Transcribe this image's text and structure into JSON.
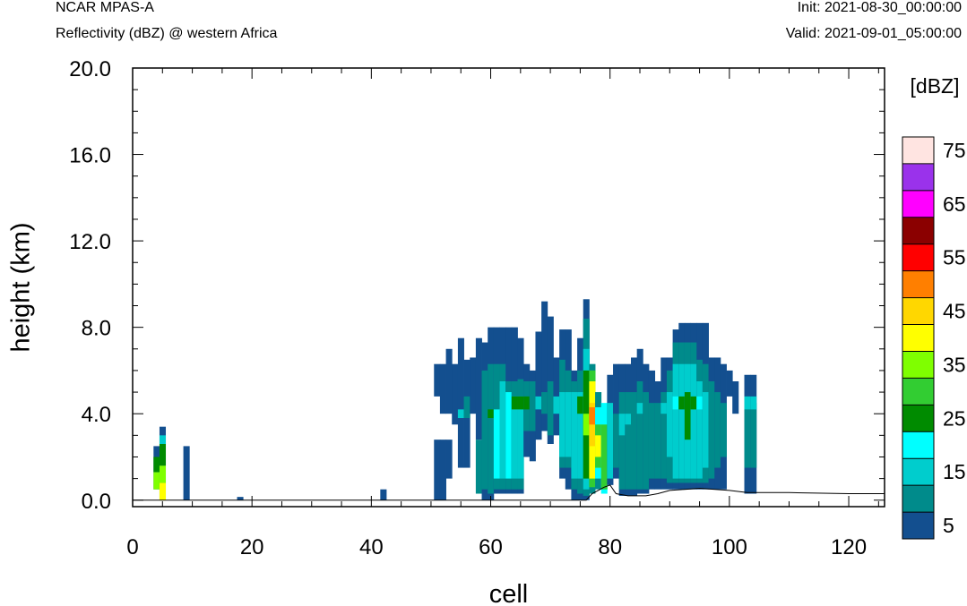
{
  "header": {
    "left_title": "NCAR MPAS-A",
    "left_subtitle": "Reflectivity (dBZ) @ western Africa",
    "init": "Init: 2021-08-30_00:00:00",
    "valid": "Valid: 2021-09-01_05:00:00"
  },
  "chart_data": {
    "type": "heatmap",
    "xlabel": "cell",
    "ylabel": "height (km)",
    "xlim": [
      0,
      126
    ],
    "ylim": [
      -0.3,
      20
    ],
    "x_ticks": [
      0,
      20,
      40,
      60,
      80,
      100,
      120
    ],
    "x_tick_labels": [
      "0",
      "20",
      "40",
      "60",
      "80",
      "100",
      "120"
    ],
    "y_ticks": [
      0,
      4,
      8,
      12,
      16,
      20
    ],
    "y_tick_labels": [
      "0.0",
      "4.0",
      "8.0",
      "12.0",
      "16.0",
      "20.0"
    ],
    "colorbar": {
      "unit": "[dBZ]",
      "levels": [
        5,
        10,
        15,
        20,
        25,
        30,
        35,
        40,
        45,
        50,
        55,
        60,
        65,
        70,
        75
      ],
      "colors": [
        "#134f8f",
        "#008b8b",
        "#00cdcd",
        "#00ffff",
        "#008b00",
        "#32cd32",
        "#7fff00",
        "#ffff00",
        "#ffd700",
        "#ff7f00",
        "#ff0000",
        "#8b0000",
        "#ff00ff",
        "#9a32eb",
        "#ffe4e1"
      ],
      "tick_labels": [
        "5",
        "15",
        "25",
        "35",
        "45",
        "55",
        "65",
        "75"
      ]
    },
    "columns": [
      {
        "x": 4,
        "cells": [
          [
            0.5,
            2.5,
            5
          ]
        ],
        "level_bands": [
          [
            0.5,
            1.3,
            35
          ],
          [
            1.3,
            2.0,
            25
          ]
        ]
      },
      {
        "x": 5,
        "cells": [
          [
            0.0,
            3.4,
            5
          ]
        ],
        "level_bands": [
          [
            0.0,
            0.8,
            40
          ],
          [
            0.8,
            1.6,
            35
          ],
          [
            1.6,
            2.6,
            25
          ],
          [
            2.6,
            3.0,
            15
          ]
        ]
      },
      {
        "x": 9,
        "cells": [
          [
            0.0,
            2.5,
            5
          ]
        ]
      },
      {
        "x": 18,
        "cells": [
          [
            0.0,
            0.15,
            5
          ]
        ]
      },
      {
        "x": 42,
        "cells": [
          [
            0.0,
            0.5,
            5
          ]
        ]
      },
      {
        "x": 51,
        "cells": [
          [
            0.0,
            2.8,
            5
          ],
          [
            4.8,
            6.3,
            5
          ]
        ]
      },
      {
        "x": 52,
        "cells": [
          [
            0.0,
            2.8,
            5
          ],
          [
            4.0,
            6.3,
            5
          ]
        ]
      },
      {
        "x": 53,
        "cells": [
          [
            1.0,
            2.8,
            5
          ],
          [
            4.0,
            7.0,
            5
          ]
        ]
      },
      {
        "x": 54,
        "cells": [
          [
            3.5,
            6.3,
            5
          ]
        ]
      },
      {
        "x": 55,
        "cells": [
          [
            1.5,
            7.5,
            5
          ],
          [
            3.8,
            4.2,
            15
          ]
        ]
      },
      {
        "x": 56,
        "cells": [
          [
            1.5,
            6.5,
            5
          ],
          [
            3.8,
            4.8,
            10
          ]
        ]
      },
      {
        "x": 57,
        "cells": [
          [
            4.0,
            6.6,
            5
          ]
        ]
      },
      {
        "x": 58,
        "cells": [
          [
            0.3,
            2.8,
            10
          ],
          [
            2.8,
            7.5,
            5
          ]
        ]
      },
      {
        "x": 59,
        "cells": [
          [
            0.0,
            7.3,
            5
          ],
          [
            0.5,
            6.0,
            10
          ]
        ]
      },
      {
        "x": 60,
        "cells": [
          [
            0.0,
            8.0,
            5
          ],
          [
            0.3,
            6.3,
            10
          ],
          [
            3.8,
            4.2,
            25
          ]
        ]
      },
      {
        "x": 61,
        "cells": [
          [
            0.3,
            8.0,
            5
          ],
          [
            0.5,
            6.3,
            10
          ],
          [
            1.0,
            4.2,
            20
          ]
        ]
      },
      {
        "x": 62,
        "cells": [
          [
            0.3,
            8.0,
            5
          ],
          [
            0.5,
            6.3,
            10
          ],
          [
            1.0,
            5.5,
            15
          ]
        ]
      },
      {
        "x": 63,
        "cells": [
          [
            0.3,
            8.0,
            5
          ],
          [
            0.5,
            5.5,
            10
          ],
          [
            1.0,
            5.0,
            20
          ]
        ]
      },
      {
        "x": 64,
        "cells": [
          [
            0.3,
            8.0,
            5
          ],
          [
            0.5,
            5.5,
            10
          ],
          [
            1.0,
            4.8,
            15
          ],
          [
            4.2,
            4.8,
            25
          ]
        ]
      },
      {
        "x": 65,
        "cells": [
          [
            0.3,
            7.5,
            5
          ],
          [
            0.5,
            5.6,
            10
          ],
          [
            1.0,
            4.8,
            15
          ],
          [
            4.2,
            4.8,
            25
          ]
        ]
      },
      {
        "x": 66,
        "cells": [
          [
            2.0,
            6.3,
            5
          ],
          [
            3.2,
            5.5,
            10
          ],
          [
            4.2,
            4.8,
            25
          ]
        ]
      },
      {
        "x": 67,
        "cells": [
          [
            1.8,
            6.0,
            5
          ],
          [
            3.2,
            5.5,
            10
          ]
        ]
      },
      {
        "x": 68,
        "cells": [
          [
            2.8,
            7.8,
            5
          ],
          [
            4.2,
            4.8,
            15
          ]
        ]
      },
      {
        "x": 69,
        "cells": [
          [
            3.2,
            9.2,
            5
          ],
          [
            4.0,
            5.0,
            10
          ]
        ]
      },
      {
        "x": 70,
        "cells": [
          [
            2.6,
            8.5,
            5
          ],
          [
            3.0,
            5.5,
            10
          ]
        ]
      },
      {
        "x": 71,
        "cells": [
          [
            3.0,
            6.6,
            5
          ],
          [
            4.0,
            4.8,
            15
          ]
        ]
      },
      {
        "x": 72,
        "cells": [
          [
            1.0,
            7.9,
            5
          ],
          [
            1.5,
            6.5,
            10
          ],
          [
            2.0,
            5.0,
            15
          ]
        ]
      },
      {
        "x": 73,
        "cells": [
          [
            0.5,
            7.9,
            5
          ],
          [
            1.5,
            6.0,
            10
          ],
          [
            2.0,
            5.0,
            15
          ]
        ]
      },
      {
        "x": 74,
        "cells": [
          [
            0.0,
            6.0,
            5
          ],
          [
            0.5,
            5.5,
            10
          ],
          [
            1.0,
            5.0,
            15
          ]
        ]
      },
      {
        "x": 75,
        "cells": [
          [
            0.0,
            7.5,
            5
          ],
          [
            0.3,
            6.0,
            10
          ],
          [
            1.0,
            5.0,
            15
          ],
          [
            4.0,
            4.8,
            25
          ]
        ]
      },
      {
        "x": 76,
        "cells": [
          [
            0.0,
            9.3,
            5
          ],
          [
            0.2,
            8.4,
            10
          ],
          [
            0.5,
            7.0,
            15
          ],
          [
            1.0,
            6.0,
            25
          ],
          [
            3.0,
            4.0,
            35
          ]
        ]
      },
      {
        "x": 77,
        "cells": [
          [
            0.3,
            6.3,
            10
          ],
          [
            0.6,
            6.0,
            30
          ],
          [
            1.0,
            5.5,
            40
          ],
          [
            2.5,
            4.5,
            45
          ],
          [
            3.5,
            4.3,
            50
          ]
        ]
      },
      {
        "x": 78,
        "cells": [
          [
            0.5,
            5.0,
            10
          ],
          [
            1.0,
            4.3,
            20
          ],
          [
            1.5,
            3.5,
            30
          ],
          [
            2.0,
            3.0,
            40
          ]
        ]
      },
      {
        "x": 79,
        "cells": [
          [
            0.3,
            4.5,
            20
          ],
          [
            0.5,
            3.5,
            30
          ]
        ]
      },
      {
        "x": 80,
        "cells": [
          [
            0.7,
            5.8,
            5
          ],
          [
            1.0,
            4.5,
            15
          ]
        ]
      },
      {
        "x": 81,
        "cells": [
          [
            1.0,
            6.3,
            5
          ],
          [
            1.5,
            4.0,
            10
          ]
        ]
      },
      {
        "x": 82,
        "cells": [
          [
            0.2,
            6.3,
            5
          ],
          [
            0.5,
            5.0,
            10
          ],
          [
            3.0,
            4.0,
            15
          ]
        ]
      },
      {
        "x": 83,
        "cells": [
          [
            0.2,
            6.3,
            5
          ],
          [
            0.5,
            5.0,
            10
          ],
          [
            3.5,
            4.0,
            15
          ]
        ]
      },
      {
        "x": 84,
        "cells": [
          [
            0.2,
            6.6,
            5
          ],
          [
            0.5,
            5.0,
            10
          ]
        ]
      },
      {
        "x": 85,
        "cells": [
          [
            0.3,
            7.0,
            5
          ],
          [
            0.5,
            5.5,
            10
          ],
          [
            4.0,
            4.5,
            15
          ]
        ]
      },
      {
        "x": 86,
        "cells": [
          [
            0.3,
            6.3,
            5
          ],
          [
            0.5,
            5.0,
            10
          ]
        ]
      },
      {
        "x": 87,
        "cells": [
          [
            0.5,
            6.0,
            5
          ],
          [
            1.0,
            4.5,
            10
          ]
        ]
      },
      {
        "x": 88,
        "cells": [
          [
            0.5,
            5.5,
            5
          ],
          [
            1.0,
            4.5,
            10
          ]
        ]
      },
      {
        "x": 89,
        "cells": [
          [
            0.5,
            6.6,
            5
          ],
          [
            1.0,
            5.0,
            10
          ],
          [
            4.0,
            4.5,
            15
          ]
        ]
      },
      {
        "x": 90,
        "cells": [
          [
            0.5,
            6.6,
            5
          ],
          [
            0.8,
            6.0,
            10
          ],
          [
            2.0,
            5.0,
            15
          ]
        ]
      },
      {
        "x": 91,
        "cells": [
          [
            0.5,
            7.9,
            5
          ],
          [
            0.8,
            7.3,
            10
          ],
          [
            1.0,
            6.3,
            15
          ],
          [
            4.2,
            4.8,
            20
          ]
        ]
      },
      {
        "x": 92,
        "cells": [
          [
            0.5,
            8.2,
            5
          ],
          [
            0.8,
            7.3,
            10
          ],
          [
            1.0,
            6.3,
            15
          ],
          [
            4.2,
            4.8,
            25
          ]
        ]
      },
      {
        "x": 93,
        "cells": [
          [
            0.5,
            8.2,
            5
          ],
          [
            0.8,
            7.3,
            10
          ],
          [
            1.0,
            6.3,
            15
          ],
          [
            2.8,
            5.0,
            25
          ]
        ]
      },
      {
        "x": 94,
        "cells": [
          [
            0.5,
            8.2,
            5
          ],
          [
            0.8,
            7.3,
            10
          ],
          [
            1.0,
            6.3,
            15
          ],
          [
            4.2,
            4.8,
            25
          ]
        ]
      },
      {
        "x": 95,
        "cells": [
          [
            0.5,
            8.2,
            5
          ],
          [
            0.8,
            6.5,
            10
          ],
          [
            1.0,
            5.5,
            15
          ],
          [
            4.2,
            4.8,
            20
          ]
        ]
      },
      {
        "x": 96,
        "cells": [
          [
            0.5,
            8.2,
            5
          ],
          [
            0.8,
            6.3,
            10
          ],
          [
            1.5,
            5.0,
            15
          ]
        ]
      },
      {
        "x": 97,
        "cells": [
          [
            0.5,
            6.6,
            5
          ],
          [
            1.0,
            5.5,
            10
          ]
        ]
      },
      {
        "x": 98,
        "cells": [
          [
            0.5,
            6.6,
            5
          ],
          [
            1.5,
            5.0,
            10
          ]
        ]
      },
      {
        "x": 99,
        "cells": [
          [
            0.5,
            6.3,
            5
          ],
          [
            2.0,
            4.5,
            10
          ]
        ]
      },
      {
        "x": 100,
        "cells": [
          [
            4.8,
            6.0,
            5
          ]
        ]
      },
      {
        "x": 101,
        "cells": [
          [
            4.0,
            5.5,
            5
          ]
        ]
      },
      {
        "x": 103,
        "cells": [
          [
            0.3,
            5.8,
            5
          ],
          [
            1.5,
            4.8,
            10
          ],
          [
            4.2,
            4.8,
            15
          ]
        ]
      },
      {
        "x": 104,
        "cells": [
          [
            0.3,
            5.8,
            5
          ],
          [
            1.5,
            4.5,
            10
          ],
          [
            4.2,
            4.8,
            15
          ]
        ]
      }
    ]
  }
}
